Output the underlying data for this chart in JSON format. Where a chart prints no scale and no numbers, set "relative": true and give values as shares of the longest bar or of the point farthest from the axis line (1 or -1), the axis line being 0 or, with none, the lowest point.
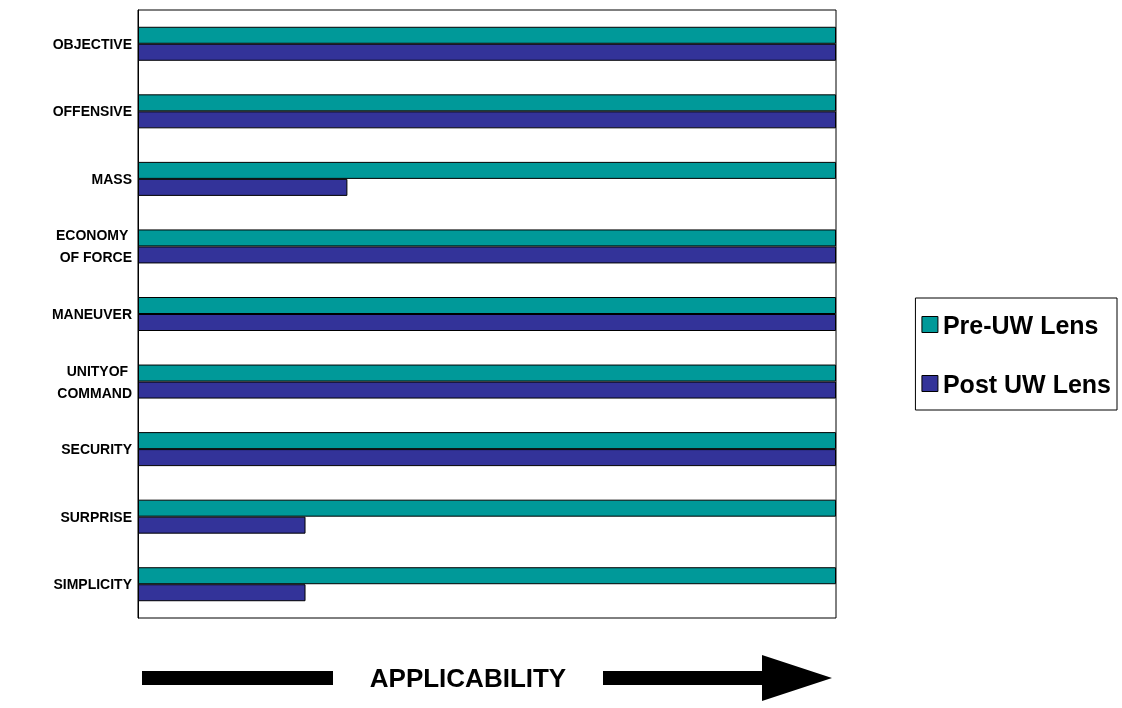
{
  "chart_data": {
    "type": "bar",
    "orientation": "horizontal",
    "relative": true,
    "xlabel": "APPLICABILITY",
    "categories": [
      "OBJECTIVE",
      "OFFENSIVE",
      "MASS",
      "ECONOMY OF FORCE",
      "MANEUVER",
      "UNITYOF COMMAND",
      "SECURITY",
      "SURPRISE",
      "SIMPLICITY"
    ],
    "series": [
      {
        "name": "Pre-UW Lens",
        "color": "#009999",
        "values": [
          1,
          1,
          1,
          1,
          1,
          1,
          1,
          1,
          1
        ]
      },
      {
        "name": "Post UW Lens",
        "color": "#333399",
        "values": [
          1,
          1,
          0.3,
          1,
          1,
          1,
          1,
          0.24,
          0.24
        ]
      }
    ],
    "legend": "right"
  }
}
